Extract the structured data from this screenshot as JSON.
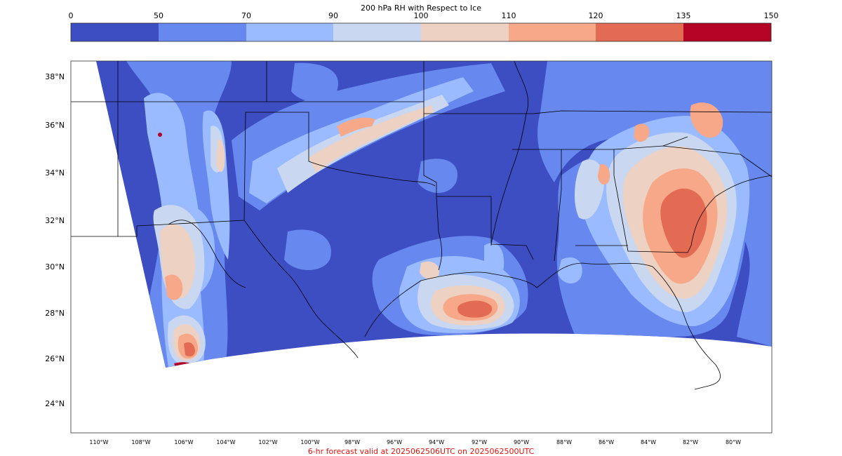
{
  "colorbar": {
    "title": "200 hPa RH with Respect to Ice",
    "ticks": [
      "0",
      "50",
      "70",
      "90",
      "100",
      "110",
      "120",
      "135",
      "150"
    ],
    "colors": [
      "#3c4ec2",
      "#6788ee",
      "#9abbff",
      "#c9d7f0",
      "#edd1c2",
      "#f7a889",
      "#e36a53",
      "#b40426"
    ]
  },
  "axes": {
    "lat_labels": [
      "38°N",
      "36°N",
      "34°N",
      "32°N",
      "30°N",
      "28°N",
      "26°N",
      "24°N"
    ],
    "lon_labels": [
      "110°W",
      "108°W",
      "106°W",
      "104°W",
      "102°W",
      "100°W",
      "98°W",
      "96°W",
      "94°W",
      "92°W",
      "90°W",
      "88°W",
      "86°W",
      "84°W",
      "82°W",
      "80°W"
    ]
  },
  "footer": {
    "text": "6-hr forecast valid at 2025062506UTC on 2025062500UTC",
    "color": "#e8130e"
  },
  "map_colors": {
    "ocean_nodata": "#ffffff",
    "border": "#000000"
  }
}
